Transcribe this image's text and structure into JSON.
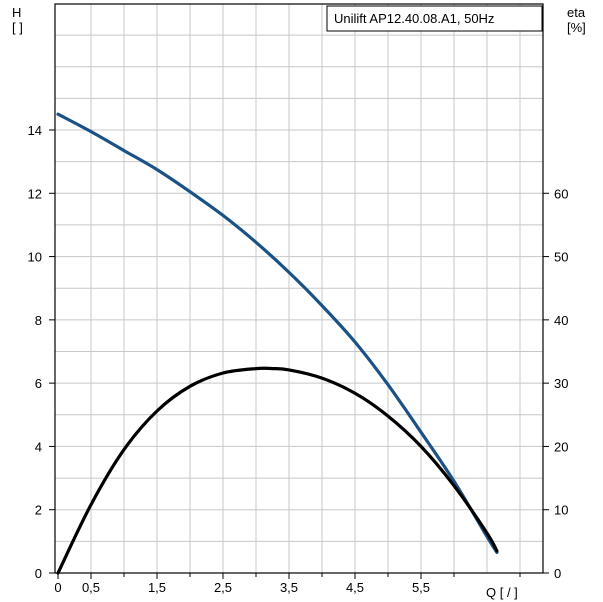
{
  "chart_data": {
    "type": "line",
    "title": "Unilift AP12.40.08.A1, 50Hz",
    "xlabel": "Q [  /  ]",
    "ylabel": "H\n[  ]",
    "y2label": "eta\n[%]",
    "xlim": [
      0,
      7.3
    ],
    "ylim": [
      0,
      18
    ],
    "y2lim": [
      0,
      90
    ],
    "grid": true,
    "x_major_ticks": [
      0,
      0.5,
      1.5,
      2.5,
      3.5,
      4.5,
      5.5
    ],
    "x_tick_labels": [
      "0",
      "0,5",
      "1,5",
      "2,5",
      "3,5",
      "4,5",
      "5,5"
    ],
    "y_ticks": [
      0,
      2,
      4,
      6,
      8,
      10,
      12,
      14
    ],
    "y2_ticks": [
      0,
      10,
      20,
      30,
      40,
      50,
      60
    ],
    "series": [
      {
        "axis": "left",
        "color": "#1a5286",
        "x": [
          0,
          0.5,
          1,
          1.5,
          2,
          2.5,
          3,
          3.5,
          4,
          4.5,
          5,
          5.5,
          6,
          6.5,
          6.65
        ],
        "values": [
          14.5,
          13.95,
          13.35,
          12.75,
          12.05,
          11.3,
          10.45,
          9.5,
          8.45,
          7.3,
          5.95,
          4.45,
          2.9,
          1.15,
          0.65
        ]
      },
      {
        "axis": "right",
        "color": "#000000",
        "x": [
          0,
          0.5,
          1,
          1.5,
          2,
          2.5,
          3,
          3.25,
          3.5,
          4,
          4.5,
          5,
          5.5,
          6,
          6.5,
          6.65
        ],
        "values": [
          0,
          10.8,
          19.5,
          25.6,
          29.5,
          31.6,
          32.3,
          32.3,
          32.1,
          30.8,
          28.4,
          24.8,
          20.0,
          13.8,
          6.3,
          3.5
        ]
      }
    ]
  }
}
